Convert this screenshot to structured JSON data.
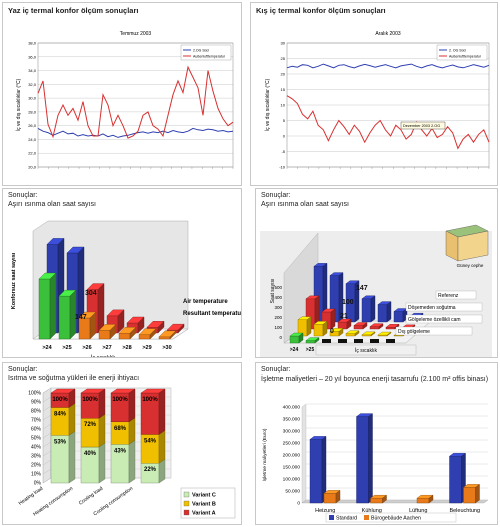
{
  "panels": {
    "p1": {
      "title": "Yaz iç termal konfor ölçüm sonuçları"
    },
    "p2": {
      "title": "Kış iç termal konfor ölçüm sonuçları"
    },
    "p3": {
      "header": "Sonuçlar:",
      "subtitle": "Aşırı ısınma olan saat sayısı"
    },
    "p4": {
      "header": "Sonuçlar:",
      "subtitle": "Aşırı ısınma olan saat sayısı"
    },
    "p5": {
      "header": "Sonuçlar:",
      "subtitle": "Isıtma ve soğutma yükleri ile enerji ihtiyacı"
    },
    "p6": {
      "header": "Sonuçlar:",
      "subtitle": "İşletme maliyetleri – 20 yıl boyunca enerji tasarrufu (2.100 m² offis binası)"
    }
  },
  "colors": {
    "blue": "#2f3fb0",
    "red": "#d83030",
    "green": "#3ac03a",
    "yellow": "#f0c000",
    "orange": "#e87a1a",
    "light_green": "#c8ecb4",
    "grid": "#bbbbbb"
  },
  "chart_data": [
    {
      "type": "line",
      "title": "Temmuz 2003",
      "ylabel": "İç ve dış sıcaklıklar (°C)",
      "ylim": [
        20,
        38
      ],
      "yticks": [
        "38,0",
        "36,0",
        "34,0",
        "32,0",
        "30,0",
        "28,0",
        "26,0",
        "24,0",
        "22,0",
        "20,0"
      ],
      "legend": "top-right",
      "series": [
        {
          "name": "2.OG Süd",
          "color": "#2f3fb0",
          "values": [
            25.6,
            25.2,
            25.0,
            24.6,
            24.9,
            25.2,
            24.8,
            24.9,
            24.5,
            24.7,
            24.5,
            24.6,
            24.5,
            24.8,
            24.4,
            24.6,
            24.3,
            24.5,
            24.6,
            24.8,
            25.0,
            25.1,
            24.9,
            25.1,
            25.0,
            25.2,
            25.0,
            25.3,
            25.1,
            25.0,
            25.2,
            25.6,
            25.4,
            25.3,
            25.5,
            25.4,
            25.2,
            25.3,
            25.1,
            25.2
          ]
        },
        {
          "name": "Außenlufttemperatur",
          "color": "#d83030",
          "values": [
            30.7,
            32.5,
            26.2,
            24.4,
            27.5,
            29.0,
            27.5,
            28.5,
            26.8,
            29.5,
            26.0,
            24.5,
            24.5,
            30.5,
            29.0,
            26.0,
            27.5,
            26.0,
            24.2,
            24.5,
            25.2,
            27.5,
            28.0,
            26.0,
            25.5,
            24.5,
            27.5,
            30.5,
            32.5,
            30.8,
            34.5,
            33.0,
            31.5,
            27.5,
            34.0,
            31.0,
            28.5,
            27.0,
            26.0,
            26.5
          ]
        }
      ]
    },
    {
      "type": "line",
      "title": "Aralık 2003",
      "ylabel": "İç ve dış sıcaklıklar (°C)",
      "ylim": [
        -10,
        30
      ],
      "yticks": [
        "30",
        "25",
        "20",
        "15",
        "10",
        "5",
        "0",
        "-5",
        "-10"
      ],
      "annotations": [
        "Dezember 2003 2.OG"
      ],
      "legend": "top-right",
      "series": [
        {
          "name": "2. OG Süd",
          "color": "#2f3fb0",
          "values": [
            22.0,
            22.5,
            22.2,
            23.0,
            22.8,
            22.0,
            22.5,
            23.2,
            22.6,
            22.0,
            22.8,
            23.0,
            22.4,
            22.0,
            22.6,
            23.1,
            22.7,
            22.2,
            22.6,
            23.0,
            22.5,
            22.0,
            22.6,
            22.9,
            23.2,
            22.5,
            22.0,
            22.6,
            23.0,
            22.4,
            22.0,
            22.5,
            22.9,
            22.3,
            22.0,
            22.5,
            23.0,
            22.6,
            22.2,
            22.8
          ]
        },
        {
          "name": "Außenlufttemperatur",
          "color": "#d83030",
          "values": [
            13.0,
            12.0,
            10.5,
            7.0,
            5.5,
            8.0,
            3.5,
            2.0,
            -1.5,
            2.0,
            5.0,
            3.0,
            0.5,
            3.5,
            1.5,
            -2.0,
            1.0,
            3.5,
            5.0,
            2.0,
            0.0,
            3.5,
            2.0,
            -1.0,
            0.5,
            4.5,
            2.0,
            0.0,
            2.5,
            -0.5,
            0.5,
            3.0,
            1.0,
            -4.0,
            -1.0,
            0.5,
            -2.0,
            0.5,
            2.0,
            -2.0
          ]
        }
      ]
    },
    {
      "type": "bar",
      "ylabel": "Konforsuz saat sayısı",
      "xlabel": "İç sıcaklık",
      "categories": [
        ">24",
        ">25",
        ">26",
        ">27",
        ">28",
        ">29",
        ">30"
      ],
      "series": [
        {
          "name": "Air temperature",
          "values": [
            620,
            560,
            304,
            120,
            70,
            40,
            20
          ]
        },
        {
          "name": "Resultant temperature",
          "values": [
            420,
            300,
            147,
            60,
            40,
            30,
            15
          ]
        }
      ],
      "data_labels": [
        "304",
        "147"
      ],
      "ylim": [
        0,
        700
      ]
    },
    {
      "type": "bar",
      "ylabel": "Saat sayısı",
      "xlabel": "İç sıcaklık",
      "yticks": [
        "500",
        "400",
        "300",
        "200",
        "100",
        "0"
      ],
      "categories": [
        ">24",
        ">25",
        ">26",
        ">27",
        ">28",
        ">29",
        ">30"
      ],
      "series": [
        {
          "name": "Referenz",
          "values": [
            480,
            400,
            330,
            200,
            150,
            90,
            50
          ]
        },
        {
          "name": "Döşemeden soğutma",
          "values": [
            260,
            147,
            60,
            30,
            20,
            15,
            10
          ]
        },
        {
          "name": "Gölgeleme özellikli cam",
          "values": [
            140,
            100,
            40,
            20,
            10,
            8,
            5
          ]
        },
        {
          "name": "Dış gölgeleme",
          "values": [
            60,
            21,
            0,
            0,
            0,
            0,
            0
          ]
        }
      ],
      "data_labels": [
        "147",
        "100",
        "21",
        "0"
      ],
      "annotations": [
        "Güney cephe"
      ],
      "ylim": [
        0,
        500
      ]
    },
    {
      "type": "bar",
      "categories": [
        "Heating load",
        "Heating consumption",
        "Cooling load",
        "Cooling consumption"
      ],
      "yticks": [
        "100%",
        "90%",
        "80%",
        "70%",
        "60%",
        "50%",
        "40%",
        "30%",
        "20%",
        "10%",
        "0%"
      ],
      "series": [
        {
          "name": "Variant C",
          "values": [
            53,
            40,
            43,
            22
          ]
        },
        {
          "name": "Variant B",
          "values": [
            84,
            72,
            68,
            54
          ]
        },
        {
          "name": "Variant A",
          "values": [
            100,
            100,
            100,
            100
          ]
        }
      ],
      "ylim": [
        0,
        100
      ]
    },
    {
      "type": "bar",
      "ylabel": "İşletme maliyetleri (Euro)",
      "categories": [
        "Heizung",
        "Kühlung",
        "Lüftung",
        "Beleuchtung"
      ],
      "yticks": [
        "400.000",
        "350.000",
        "300.000",
        "250.000",
        "200.000",
        "150.000",
        "100.000",
        "50.000",
        "0"
      ],
      "series": [
        {
          "name": "Standard",
          "values": [
            265000,
            360000,
            0,
            195000
          ]
        },
        {
          "name": "Bürogebäude Aachen",
          "values": [
            40000,
            20000,
            20000,
            65000
          ]
        }
      ],
      "ylim": [
        0,
        400000
      ],
      "legend": "bottom"
    }
  ]
}
